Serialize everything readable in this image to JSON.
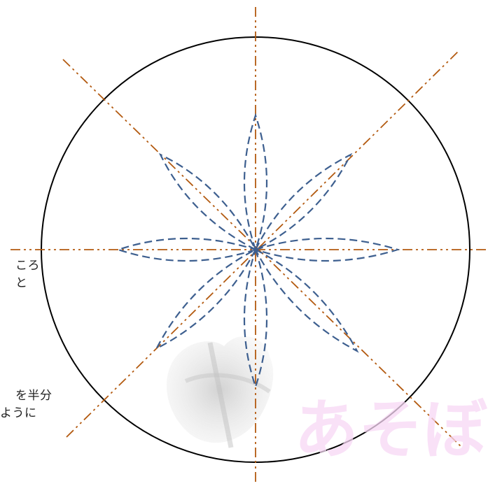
{
  "diagram": {
    "petal_count": 8,
    "guide_line_style": "dash-dot-dot",
    "petal_outline_style": "dashed",
    "colors": {
      "circle": "#000000",
      "guide_line": "#b35a10",
      "petal_outline": "#3d5f8f",
      "text": "#222222",
      "watermark_mark": "#c8c8c8",
      "watermark_text": "#f6cdf1"
    }
  },
  "notes": {
    "line_1": "ころ",
    "line_2": "と",
    "line_3": "を半分",
    "line_4": "ように"
  },
  "watermark": {
    "text": "あそぼ"
  }
}
